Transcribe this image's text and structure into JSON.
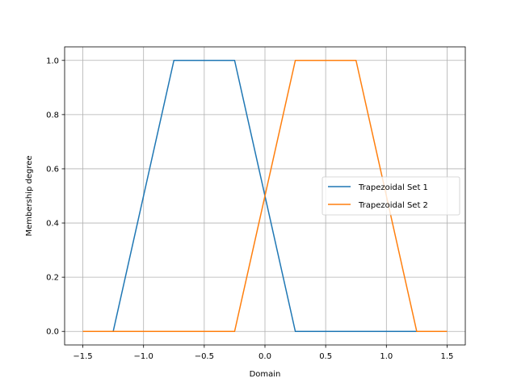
{
  "chart_data": {
    "type": "line",
    "title": "",
    "xlabel": "Domain",
    "ylabel": "Membership degree",
    "xlim": [
      -1.65,
      1.65
    ],
    "ylim": [
      -0.05,
      1.05
    ],
    "x_ticks": [
      -1.5,
      -1.0,
      -0.5,
      0.0,
      0.5,
      1.0,
      1.5
    ],
    "x_tick_labels": [
      "−1.5",
      "−1.0",
      "−0.5",
      "0.0",
      "0.5",
      "1.0",
      "1.5"
    ],
    "y_ticks": [
      0.0,
      0.2,
      0.4,
      0.6,
      0.8,
      1.0
    ],
    "y_tick_labels": [
      "0.0",
      "0.2",
      "0.4",
      "0.6",
      "0.8",
      "1.0"
    ],
    "grid": true,
    "legend_position": "center-right",
    "series": [
      {
        "name": "Trapezoidal Set 1",
        "color": "#1f77b4",
        "x": [
          -1.5,
          -1.25,
          -0.75,
          -0.25,
          0.25,
          1.5
        ],
        "y": [
          0.0,
          0.0,
          1.0,
          1.0,
          0.0,
          0.0
        ]
      },
      {
        "name": "Trapezoidal Set 2",
        "color": "#ff7f0e",
        "x": [
          -1.5,
          -0.25,
          0.25,
          0.75,
          1.25,
          1.5
        ],
        "y": [
          0.0,
          0.0,
          1.0,
          1.0,
          0.0,
          0.0
        ]
      }
    ]
  }
}
